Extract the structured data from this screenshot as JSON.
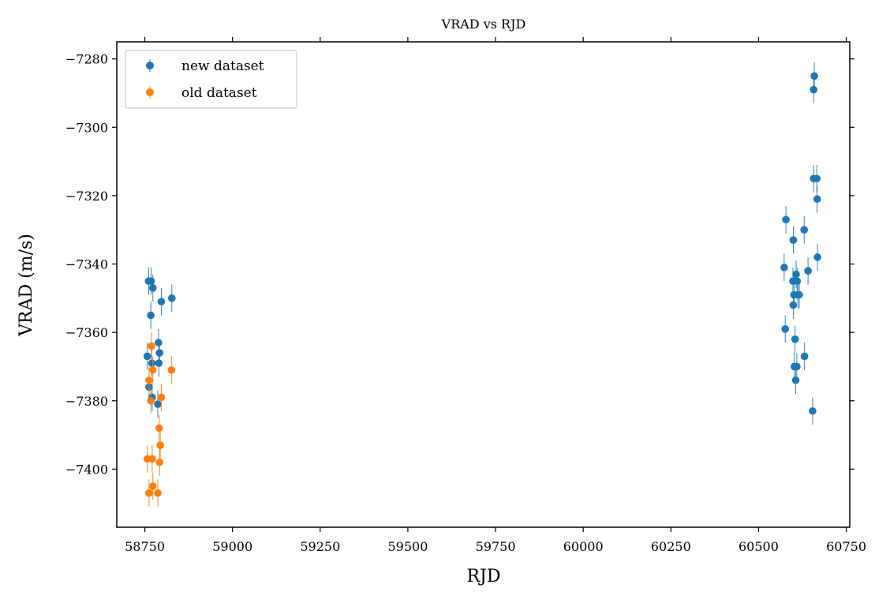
{
  "chart_data": {
    "type": "scatter",
    "title": "VRAD vs RJD",
    "xlabel": "RJD",
    "ylabel": "VRAD (m/s)",
    "xlim": [
      58670,
      60760
    ],
    "ylim": [
      -7417,
      -7275
    ],
    "xticks": [
      58750,
      59000,
      59250,
      59500,
      59750,
      60000,
      60250,
      60500,
      60750
    ],
    "xtick_labels": [
      "58750",
      "59000",
      "59250",
      "59500",
      "59750",
      "60000",
      "60250",
      "60500",
      "60750"
    ],
    "yticks": [
      -7280,
      -7300,
      -7320,
      -7340,
      -7360,
      -7380,
      -7400
    ],
    "ytick_labels": [
      "−7280",
      "−7300",
      "−7320",
      "−7340",
      "−7360",
      "−7380",
      "−7400"
    ],
    "grid": false,
    "legend_position": "top-left",
    "series": [
      {
        "name": "new dataset",
        "color": "#1f77b4",
        "points": [
          {
            "x": 58761,
            "y": -7345,
            "err": 4
          },
          {
            "x": 58768,
            "y": -7345,
            "err": 4
          },
          {
            "x": 58773,
            "y": -7347,
            "err": 4
          },
          {
            "x": 58767,
            "y": -7355,
            "err": 4
          },
          {
            "x": 58797,
            "y": -7351,
            "err": 4
          },
          {
            "x": 58827,
            "y": -7350,
            "err": 4
          },
          {
            "x": 58789,
            "y": -7363,
            "err": 4
          },
          {
            "x": 58792,
            "y": -7366,
            "err": 4
          },
          {
            "x": 58757,
            "y": -7367,
            "err": 4
          },
          {
            "x": 58770,
            "y": -7369,
            "err": 4
          },
          {
            "x": 58790,
            "y": -7369,
            "err": 4
          },
          {
            "x": 58762,
            "y": -7376,
            "err": 4
          },
          {
            "x": 58771,
            "y": -7379,
            "err": 4
          },
          {
            "x": 58787,
            "y": -7381,
            "err": 4
          },
          {
            "x": 60659,
            "y": -7285,
            "err": 4
          },
          {
            "x": 60657,
            "y": -7289,
            "err": 4
          },
          {
            "x": 60657,
            "y": -7315,
            "err": 4
          },
          {
            "x": 60666,
            "y": -7315,
            "err": 4
          },
          {
            "x": 60667,
            "y": -7321,
            "err": 4
          },
          {
            "x": 60578,
            "y": -7327,
            "err": 4
          },
          {
            "x": 60630,
            "y": -7330,
            "err": 4
          },
          {
            "x": 60599,
            "y": -7333,
            "err": 4
          },
          {
            "x": 60668,
            "y": -7338,
            "err": 4
          },
          {
            "x": 60573,
            "y": -7341,
            "err": 4
          },
          {
            "x": 60641,
            "y": -7342,
            "err": 4
          },
          {
            "x": 60607,
            "y": -7343,
            "err": 4
          },
          {
            "x": 60598,
            "y": -7345,
            "err": 4
          },
          {
            "x": 60610,
            "y": -7345,
            "err": 4
          },
          {
            "x": 60601,
            "y": -7349,
            "err": 4
          },
          {
            "x": 60612,
            "y": -7349,
            "err": 4
          },
          {
            "x": 60616,
            "y": -7349,
            "err": 4
          },
          {
            "x": 60599,
            "y": -7352,
            "err": 4
          },
          {
            "x": 60576,
            "y": -7359,
            "err": 4
          },
          {
            "x": 60604,
            "y": -7362,
            "err": 4
          },
          {
            "x": 60631,
            "y": -7367,
            "err": 4
          },
          {
            "x": 60602,
            "y": -7370,
            "err": 4
          },
          {
            "x": 60609,
            "y": -7370,
            "err": 4
          },
          {
            "x": 60606,
            "y": -7374,
            "err": 4
          },
          {
            "x": 60654,
            "y": -7383,
            "err": 4
          }
        ]
      },
      {
        "name": "old dataset",
        "color": "#ff7f0e",
        "points": [
          {
            "x": 58769,
            "y": -7364,
            "err": 4
          },
          {
            "x": 58773,
            "y": -7371,
            "err": 4
          },
          {
            "x": 58826,
            "y": -7371,
            "err": 4
          },
          {
            "x": 58762,
            "y": -7374,
            "err": 4
          },
          {
            "x": 58797,
            "y": -7379,
            "err": 4
          },
          {
            "x": 58767,
            "y": -7380,
            "err": 4
          },
          {
            "x": 58791,
            "y": -7388,
            "err": 4
          },
          {
            "x": 58794,
            "y": -7393,
            "err": 4
          },
          {
            "x": 58757,
            "y": -7397,
            "err": 4
          },
          {
            "x": 58771,
            "y": -7397,
            "err": 4
          },
          {
            "x": 58792,
            "y": -7398,
            "err": 4
          },
          {
            "x": 58773,
            "y": -7405,
            "err": 4
          },
          {
            "x": 58762,
            "y": -7407,
            "err": 4
          },
          {
            "x": 58787,
            "y": -7407,
            "err": 4
          }
        ]
      }
    ]
  }
}
